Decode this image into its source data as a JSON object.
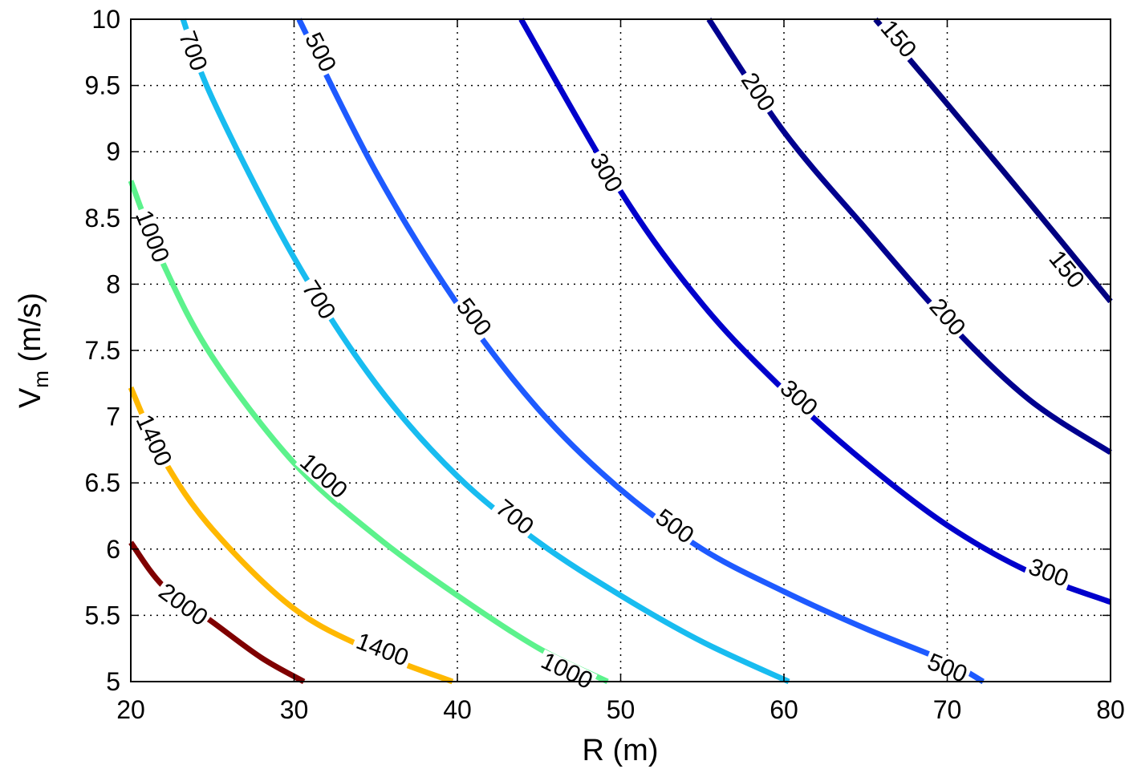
{
  "chart_data": {
    "type": "line",
    "subtype": "contour",
    "xlabel": "R (m)",
    "ylabel_main": "V",
    "ylabel_sub": "m",
    "ylabel_unit": " (m/s)",
    "xlim": [
      20,
      80
    ],
    "ylim": [
      5,
      10
    ],
    "grid": true,
    "x_ticks": [
      "20",
      "30",
      "40",
      "50",
      "60",
      "70",
      "80"
    ],
    "y_ticks": [
      "5",
      "5.5",
      "6",
      "6.5",
      "7",
      "7.5",
      "8",
      "8.5",
      "9",
      "9.5",
      "10"
    ],
    "x_tick_values": [
      20,
      30,
      40,
      50,
      60,
      70,
      80
    ],
    "y_tick_values": [
      5,
      5.5,
      6,
      6.5,
      7,
      7.5,
      8,
      8.5,
      9,
      9.5,
      10
    ],
    "series": [
      {
        "level": "150",
        "color": "#000080",
        "points": [
          [
            65.6,
            10.0
          ],
          [
            70.0,
            9.36
          ],
          [
            75.0,
            8.62
          ],
          [
            80.0,
            7.87
          ]
        ],
        "labels": [
          {
            "x": 67.0,
            "y": 9.85
          },
          {
            "x": 77.3,
            "y": 8.11
          }
        ]
      },
      {
        "level": "200",
        "color": "#00008F",
        "points": [
          [
            55.4,
            10.0
          ],
          [
            60.0,
            9.15
          ],
          [
            65.0,
            8.42
          ],
          [
            70.0,
            7.72
          ],
          [
            75.0,
            7.13
          ],
          [
            80.0,
            6.73
          ]
        ],
        "labels": [
          {
            "x": 58.4,
            "y": 9.45
          },
          {
            "x": 70.0,
            "y": 7.75
          }
        ]
      },
      {
        "level": "300",
        "color": "#0000CC",
        "points": [
          [
            43.9,
            10.0
          ],
          [
            50.0,
            8.7
          ],
          [
            55.0,
            7.85
          ],
          [
            60.0,
            7.2
          ],
          [
            65.0,
            6.65
          ],
          [
            70.0,
            6.18
          ],
          [
            75.0,
            5.83
          ],
          [
            80.0,
            5.6
          ]
        ],
        "labels": [
          {
            "x": 49.1,
            "y": 8.84
          },
          {
            "x": 60.9,
            "y": 7.14
          },
          {
            "x": 76.2,
            "y": 5.82
          }
        ]
      },
      {
        "level": "500",
        "color": "#1E5AFF",
        "points": [
          [
            30.3,
            10.0
          ],
          [
            35.0,
            8.85
          ],
          [
            40.0,
            7.85
          ],
          [
            45.0,
            7.05
          ],
          [
            50.0,
            6.45
          ],
          [
            55.0,
            6.0
          ],
          [
            60.0,
            5.68
          ],
          [
            65.0,
            5.4
          ],
          [
            70.0,
            5.15
          ],
          [
            72.2,
            5.0
          ]
        ],
        "labels": [
          {
            "x": 31.6,
            "y": 9.75
          },
          {
            "x": 41.0,
            "y": 7.75
          },
          {
            "x": 53.3,
            "y": 6.17
          },
          {
            "x": 70.0,
            "y": 5.1
          }
        ]
      },
      {
        "level": "700",
        "color": "#18BCF0",
        "points": [
          [
            23.2,
            10.0
          ],
          [
            25.0,
            9.4
          ],
          [
            30.0,
            8.2
          ],
          [
            35.0,
            7.25
          ],
          [
            40.0,
            6.55
          ],
          [
            45.0,
            6.05
          ],
          [
            50.0,
            5.65
          ],
          [
            55.0,
            5.3
          ],
          [
            60.3,
            5.0
          ]
        ],
        "labels": [
          {
            "x": 23.8,
            "y": 9.76
          },
          {
            "x": 31.5,
            "y": 7.88
          },
          {
            "x": 43.5,
            "y": 6.24
          }
        ]
      },
      {
        "level": "1000",
        "color": "#5CF28C",
        "points": [
          [
            20.0,
            8.78
          ],
          [
            22.0,
            8.15
          ],
          [
            25.0,
            7.45
          ],
          [
            30.0,
            6.65
          ],
          [
            35.0,
            6.1
          ],
          [
            40.0,
            5.65
          ],
          [
            45.0,
            5.25
          ],
          [
            49.2,
            5.0
          ]
        ],
        "labels": [
          {
            "x": 21.3,
            "y": 8.36
          },
          {
            "x": 31.8,
            "y": 6.55
          },
          {
            "x": 46.7,
            "y": 5.08
          }
        ]
      },
      {
        "level": "1400",
        "color": "#FFB800",
        "points": [
          [
            20.0,
            7.22
          ],
          [
            22.0,
            6.68
          ],
          [
            25.0,
            6.15
          ],
          [
            30.0,
            5.55
          ],
          [
            35.0,
            5.22
          ],
          [
            39.7,
            5.0
          ]
        ],
        "labels": [
          {
            "x": 21.4,
            "y": 6.82
          },
          {
            "x": 35.4,
            "y": 5.24
          }
        ]
      },
      {
        "level": "2000",
        "color": "#7F0000",
        "points": [
          [
            20.0,
            6.05
          ],
          [
            22.0,
            5.72
          ],
          [
            25.0,
            5.45
          ],
          [
            28.0,
            5.18
          ],
          [
            30.6,
            5.0
          ]
        ],
        "labels": [
          {
            "x": 23.2,
            "y": 5.58
          }
        ]
      }
    ]
  }
}
